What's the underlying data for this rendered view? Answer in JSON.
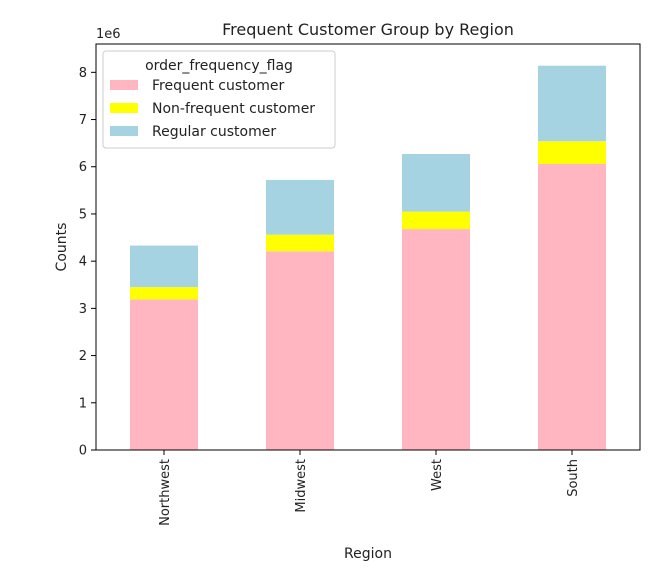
{
  "chart_data": {
    "type": "bar",
    "stacked": true,
    "title": "Frequent Customer Group by Region",
    "xlabel": "Region",
    "ylabel": "Counts",
    "y_offset_label": "1e6",
    "y_scale_factor": 1000000,
    "categories": [
      "Northwest",
      "Midwest",
      "West",
      "South"
    ],
    "series": [
      {
        "name": "Frequent customer",
        "color": "#ffb6c1",
        "values": [
          3190000,
          4210000,
          4680000,
          6060000
        ]
      },
      {
        "name": "Non-frequent customer",
        "color": "#ffff00",
        "values": [
          260000,
          350000,
          370000,
          480000
        ]
      },
      {
        "name": "Regular customer",
        "color": "#a6d3e2",
        "values": [
          880000,
          1160000,
          1220000,
          1600000
        ]
      }
    ],
    "ylim": [
      0,
      8600000
    ],
    "yticks": [
      0,
      1000000,
      2000000,
      3000000,
      4000000,
      5000000,
      6000000,
      7000000,
      8000000
    ],
    "ytick_labels": [
      "0",
      "1",
      "2",
      "3",
      "4",
      "5",
      "6",
      "7",
      "8"
    ],
    "grid": false,
    "legend": {
      "title": "order_frequency_flag",
      "placement": "top-left"
    }
  }
}
